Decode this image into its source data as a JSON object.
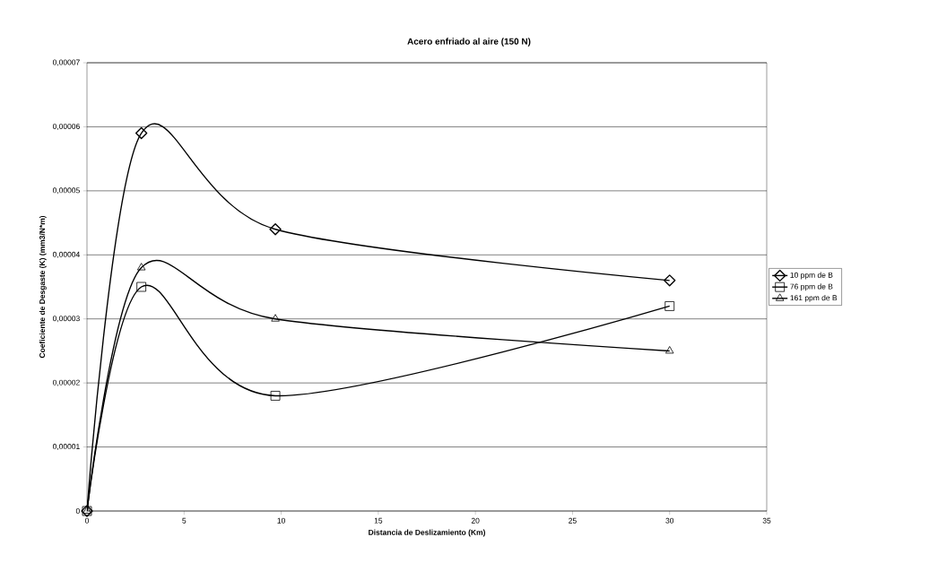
{
  "chart_data": {
    "type": "line",
    "title": "Acero enfriado al aire (150 N)",
    "xlabel": "Distancia de Deslizamiento (Km)",
    "ylabel": "Coeficiente de Desgaste (K) (mm3/N*m)",
    "x": [
      0,
      2.8,
      9.7,
      30
    ],
    "series": [
      {
        "name": "10 ppm de B",
        "color": "#000000",
        "marker": "diamond",
        "values": [
          0,
          5.9e-05,
          4.4e-05,
          3.6e-05
        ]
      },
      {
        "name": "76 ppm de B",
        "color": "#000000",
        "marker": "square",
        "values": [
          0,
          3.5e-05,
          1.8e-05,
          3.2e-05
        ]
      },
      {
        "name": "161 ppm de B",
        "color": "#000000",
        "marker": "triangle",
        "values": [
          0,
          3.8e-05,
          3e-05,
          2.5e-05
        ]
      }
    ],
    "xlim": [
      0,
      35
    ],
    "xticks": [
      0,
      5,
      10,
      15,
      20,
      25,
      30,
      35
    ],
    "ylim": [
      0,
      7e-05
    ],
    "yticks": [
      {
        "value": 0,
        "label": "0"
      },
      {
        "value": 1e-05,
        "label": "0,00001"
      },
      {
        "value": 2e-05,
        "label": "0,00002"
      },
      {
        "value": 3e-05,
        "label": "0,00003"
      },
      {
        "value": 4e-05,
        "label": "0,00004"
      },
      {
        "value": 5e-05,
        "label": "0,00005"
      },
      {
        "value": 6e-05,
        "label": "0,00006"
      },
      {
        "value": 7e-05,
        "label": "0,00007"
      }
    ],
    "grid": "y",
    "legend": "right",
    "line_style": "solid"
  }
}
